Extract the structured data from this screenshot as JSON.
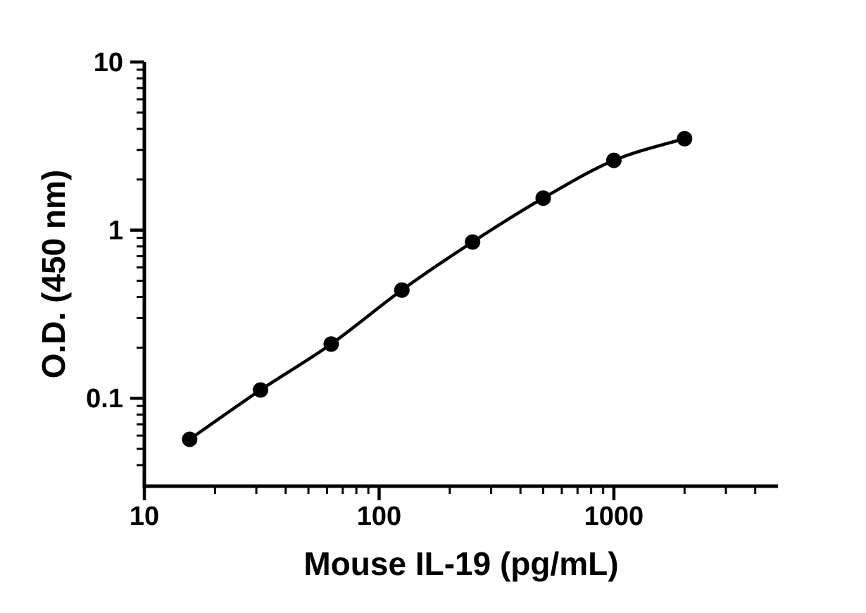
{
  "chart_data": {
    "type": "line",
    "title": "",
    "xlabel": "Mouse IL-19 (pg/mL)",
    "ylabel": "O.D. (450 nm)",
    "x_scale": "log",
    "y_scale": "log",
    "xlim": [
      10,
      5000
    ],
    "ylim": [
      0.03,
      10
    ],
    "grid": false,
    "legend": "none",
    "x": [
      15.6,
      31.25,
      62.5,
      125,
      250,
      500,
      1000,
      2000
    ],
    "y": [
      0.057,
      0.112,
      0.21,
      0.44,
      0.85,
      1.55,
      2.6,
      3.5
    ],
    "x_major_ticks": [
      {
        "value": 10,
        "label": "10"
      },
      {
        "value": 100,
        "label": "100"
      },
      {
        "value": 1000,
        "label": "1000"
      }
    ],
    "y_major_ticks": [
      {
        "value": 0.1,
        "label": "0.1"
      },
      {
        "value": 1,
        "label": "1"
      },
      {
        "value": 10,
        "label": "10"
      }
    ],
    "line": {
      "color": "#000000",
      "width": 4.5
    },
    "marker": {
      "shape": "circle",
      "size": 11,
      "color": "#000000"
    },
    "axis_color": "#000000",
    "background_color": "#ffffff"
  }
}
